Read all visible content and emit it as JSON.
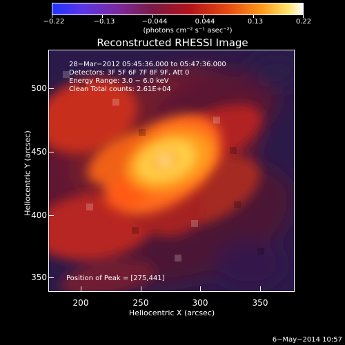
{
  "colorbar": {
    "labels": [
      "−0.22",
      "−0.13",
      "−0.044",
      "0.044",
      "0.13",
      "0.22"
    ],
    "unit": "(photons cm⁻² s⁻¹ asec⁻²)"
  },
  "plot": {
    "title": "Reconstructed RHESSI Image",
    "info": {
      "time_range": "28−Mar−2012 05:45:36.000 to 05:47:36.000",
      "detectors": "Detectors: 3F 5F 6F 7F 8F 9F, Att 0",
      "energy": "Energy Range: 3.0 − 6.0 keV",
      "clean": "Clean    Total counts: 2.61E+04"
    },
    "peak": "Position of Peak = [275,441]",
    "x_axis": {
      "label": "Heliocentric X (arcsec)",
      "ticks": [
        "200",
        "250",
        "300",
        "350"
      ]
    },
    "y_axis": {
      "label": "Heliocentric Y (arcsec)",
      "ticks": [
        "500",
        "450",
        "400",
        "350"
      ]
    }
  },
  "footer": {
    "date": "6−May−2014 10:57"
  },
  "colors": {
    "background": "#000000",
    "peak_core": "#ffffff",
    "hot": "#ffcc33",
    "orange": "#ff7a1c",
    "red": "#d81f18",
    "dark_red": "#7a1228",
    "purple": "#3a1f63",
    "dark_purple": "#2a1a4f"
  }
}
